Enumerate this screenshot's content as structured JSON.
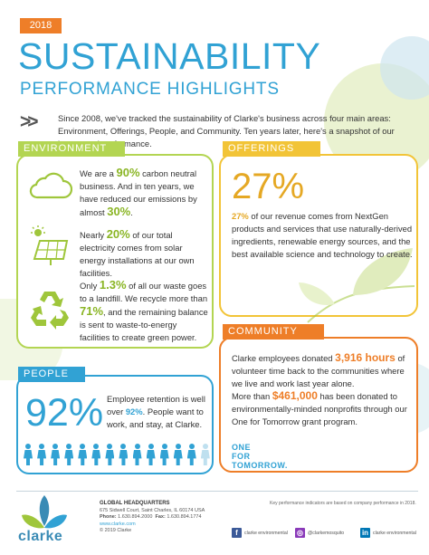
{
  "header": {
    "year": "2018",
    "title": "SUSTAINABILITY",
    "subtitle": "PERFORMANCE HIGHLIGHTS",
    "intro_arrows": ">>",
    "intro": "Since 2008, we've tracked the sustainability of Clarke's business across four main areas: Environment, Offerings, People, and Community. Ten years later, here's a snapshot of our impact and performance."
  },
  "environment": {
    "heading": "ENVIRONMENT",
    "item1": {
      "pre": "We are a ",
      "em1": "90%",
      "mid": " carbon neutral business. And in ten years, we have reduced our emissions by almost ",
      "em2": "30%",
      "post": "."
    },
    "item2": {
      "pre": "Nearly ",
      "em": "20%",
      "post": " of our total electricity comes from solar energy installations at our own facilities."
    },
    "item3": {
      "pre": "Only ",
      "em1": "1.3%",
      "mid": " of all our waste goes to a landfill. We recycle more than ",
      "em2": "71%",
      "post": ", and the remaining balance is sent to waste-to-energy facilities to create green power."
    }
  },
  "offerings": {
    "heading": "OFFERINGS",
    "big": "27%",
    "em": "27%",
    "text": " of our revenue comes from NextGen products and services that use naturally-derived ingredients, renewable energy sources, and the best available science and technology to create."
  },
  "community": {
    "heading": "COMMUNITY",
    "p1": {
      "pre": "Clarke employees donated ",
      "em": "3,916 hours",
      "post": " of volunteer time back to the communities where we live and work last year alone."
    },
    "p2": {
      "pre": "More than ",
      "em": "$461,000",
      "post": " has been donated to environmentally-minded nonprofits through our One for Tomorrow grant program."
    },
    "logo_line1": "ONE",
    "logo_line2": "FOR",
    "logo_line3": "TOMORROW."
  },
  "people": {
    "heading": "PEOPLE",
    "big": "92%",
    "pre": "Employee retention is well over ",
    "em": "92%",
    "post": ". People want to work, and stay, at Clarke.",
    "figures_total": 14,
    "figures_highlighted": 13
  },
  "footer": {
    "logo_text": "clarke",
    "hq_title": "GLOBAL HEADQUARTERS",
    "address": "675 Sidwell Court, Saint Charles, IL  60174  USA",
    "phone_label": "Phone: ",
    "phone": "1.630.894.2000",
    "fax_label": "Fax: ",
    "fax": "1.630.894.1774",
    "web": "www.clarke.com",
    "copyright": "© 2019 Clarke",
    "kpi_note": "Key performance indicators are based on company performance in 2018.",
    "social_fb": "clarke environmental",
    "social_ig": "@clarkemosquito",
    "social_in": "clarke environmental"
  },
  "colors": {
    "blue": "#31a2d4",
    "green": "#b3d552",
    "yellow": "#f2c437",
    "orange": "#ee7e28"
  },
  "icons": [
    "cloud-icon",
    "solar-panel-icon",
    "recycle-icon",
    "leaf-icon",
    "person-icon",
    "facebook-icon",
    "instagram-icon",
    "linkedin-icon"
  ]
}
